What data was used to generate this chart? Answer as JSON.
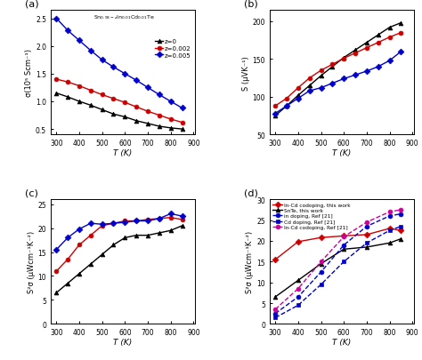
{
  "panel_a": {
    "label": "(a)",
    "xlabel": "T (K)",
    "ylabel": "σ(10⁵ Scm⁻¹)",
    "xlim": [
      275,
      905
    ],
    "ylim": [
      0.4,
      2.65
    ],
    "yticks": [
      0.5,
      1.0,
      1.5,
      2.0,
      2.5
    ],
    "xticks": [
      300,
      400,
      500,
      600,
      700,
      800,
      900
    ],
    "series": [
      {
        "label": "z=0",
        "color": "#000000",
        "marker": "^",
        "x": [
          300,
          350,
          400,
          450,
          500,
          550,
          600,
          650,
          700,
          750,
          800,
          850
        ],
        "y": [
          1.15,
          1.08,
          1.0,
          0.93,
          0.85,
          0.77,
          0.72,
          0.65,
          0.6,
          0.55,
          0.52,
          0.5
        ]
      },
      {
        "label": "z=0.002",
        "color": "#cc0000",
        "marker": "o",
        "x": [
          300,
          350,
          400,
          450,
          500,
          550,
          600,
          650,
          700,
          750,
          800,
          850
        ],
        "y": [
          1.4,
          1.35,
          1.28,
          1.2,
          1.12,
          1.05,
          0.98,
          0.9,
          0.82,
          0.75,
          0.68,
          0.62
        ]
      },
      {
        "label": "z=0.005",
        "color": "#0000cc",
        "marker": "D",
        "x": [
          300,
          350,
          400,
          450,
          500,
          550,
          600,
          650,
          700,
          750,
          800,
          850
        ],
        "y": [
          2.5,
          2.28,
          2.1,
          1.92,
          1.75,
          1.62,
          1.5,
          1.38,
          1.25,
          1.12,
          1.0,
          0.88
        ]
      }
    ]
  },
  "panel_b": {
    "label": "(b)",
    "xlabel": "T (K)",
    "ylabel": "S (μVK⁻¹)",
    "xlim": [
      275,
      905
    ],
    "ylim": [
      50,
      215
    ],
    "yticks": [
      50,
      100,
      150,
      200
    ],
    "xticks": [
      300,
      400,
      500,
      600,
      700,
      800,
      900
    ],
    "series": [
      {
        "label": "z=0",
        "color": "#000000",
        "marker": "^",
        "x": [
          300,
          350,
          400,
          450,
          500,
          550,
          600,
          650,
          700,
          750,
          800,
          850
        ],
        "y": [
          75,
          88,
          102,
          115,
          128,
          140,
          152,
          162,
          172,
          182,
          192,
          198
        ]
      },
      {
        "label": "z=0.002",
        "color": "#cc0000",
        "marker": "o",
        "x": [
          300,
          350,
          400,
          450,
          500,
          550,
          600,
          650,
          700,
          750,
          800,
          850
        ],
        "y": [
          88,
          98,
          112,
          125,
          135,
          143,
          151,
          158,
          165,
          172,
          179,
          185
        ]
      },
      {
        "label": "z=0.005",
        "color": "#0000cc",
        "marker": "D",
        "x": [
          300,
          350,
          400,
          450,
          500,
          550,
          600,
          650,
          700,
          750,
          800,
          850
        ],
        "y": [
          78,
          88,
          98,
          108,
          112,
          118,
          124,
          129,
          134,
          140,
          148,
          160
        ]
      }
    ]
  },
  "panel_c": {
    "label": "(c)",
    "xlabel": "T (K)",
    "ylabel": "S²σ (μWcm⁻¹K⁻²)",
    "xlim": [
      275,
      905
    ],
    "ylim": [
      0,
      26
    ],
    "yticks": [
      0,
      5,
      10,
      15,
      20,
      25
    ],
    "xticks": [
      300,
      400,
      500,
      600,
      700,
      800,
      900
    ],
    "series": [
      {
        "label": "z=0",
        "color": "#000000",
        "marker": "^",
        "x": [
          300,
          350,
          400,
          450,
          500,
          550,
          600,
          650,
          700,
          750,
          800,
          850
        ],
        "y": [
          6.5,
          8.5,
          10.5,
          12.5,
          14.5,
          16.5,
          18.0,
          18.5,
          18.5,
          19.0,
          19.5,
          20.5
        ]
      },
      {
        "label": "z=0.002",
        "color": "#cc0000",
        "marker": "o",
        "x": [
          300,
          350,
          400,
          450,
          500,
          550,
          600,
          650,
          700,
          750,
          800,
          850
        ],
        "y": [
          11.0,
          13.5,
          16.5,
          18.5,
          20.5,
          21.0,
          21.5,
          21.5,
          21.8,
          22.0,
          22.2,
          21.8
        ]
      },
      {
        "label": "z=0.005",
        "color": "#0000cc",
        "marker": "D",
        "x": [
          300,
          350,
          400,
          450,
          500,
          550,
          600,
          650,
          700,
          750,
          800,
          850
        ],
        "y": [
          15.5,
          18.0,
          19.8,
          21.0,
          20.8,
          21.0,
          21.2,
          21.5,
          21.5,
          22.0,
          23.0,
          22.5
        ]
      }
    ]
  },
  "panel_d": {
    "label": "(d)",
    "xlabel": "T (K)",
    "ylabel": "S²σ (μWcm⁻¹K⁻²)",
    "xlim": [
      275,
      905
    ],
    "ylim": [
      0,
      30
    ],
    "yticks": [
      0,
      5,
      10,
      15,
      20,
      25,
      30
    ],
    "xticks": [
      300,
      400,
      500,
      600,
      700,
      800,
      900
    ],
    "series": [
      {
        "label": "In-Cd codoping, this work",
        "color": "#cc0000",
        "marker": "D",
        "linestyle": "-",
        "x": [
          300,
          400,
          500,
          600,
          700,
          800,
          850
        ],
        "y": [
          15.5,
          19.8,
          20.8,
          21.2,
          21.5,
          23.0,
          22.5
        ]
      },
      {
        "label": "SnTe, this work",
        "color": "#000000",
        "marker": "^",
        "linestyle": "-",
        "x": [
          300,
          400,
          500,
          600,
          700,
          800,
          850
        ],
        "y": [
          6.5,
          10.5,
          14.5,
          18.0,
          18.5,
          19.5,
          20.5
        ]
      },
      {
        "label": "in doping, Ref [21]",
        "color": "#0000cc",
        "marker": "o",
        "linestyle": "--",
        "x": [
          300,
          400,
          500,
          600,
          700,
          800,
          850
        ],
        "y": [
          2.5,
          6.5,
          12.5,
          19.0,
          23.5,
          26.0,
          26.5
        ]
      },
      {
        "label": "Cd doping, Ref [21]",
        "color": "#0000cc",
        "marker": "s",
        "linestyle": "--",
        "x": [
          300,
          400,
          500,
          600,
          700,
          800,
          850
        ],
        "y": [
          1.5,
          4.5,
          9.5,
          15.0,
          19.5,
          22.5,
          23.5
        ]
      },
      {
        "label": "In-Cd codoping, Ref [21]",
        "color": "#cc0099",
        "marker": "o",
        "linestyle": "--",
        "x": [
          300,
          400,
          500,
          600,
          700,
          800,
          850
        ],
        "y": [
          3.5,
          8.5,
          15.0,
          21.0,
          24.5,
          27.0,
          27.5
        ]
      }
    ]
  },
  "background_color": "#ffffff",
  "fig_background": "#ffffff"
}
